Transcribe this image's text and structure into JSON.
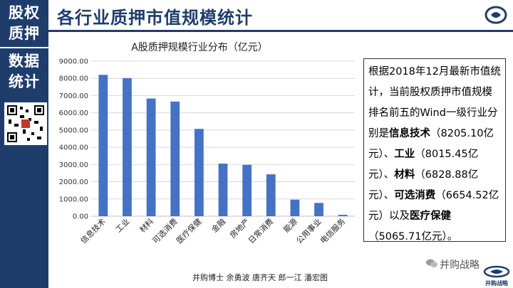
{
  "sidebar": {
    "block1": [
      "股权",
      "质押"
    ],
    "block2": [
      "数据",
      "统计"
    ]
  },
  "header": {
    "title": "各行业质押市值规模统计"
  },
  "chart_data": {
    "type": "bar",
    "title": "A股质押规模行业分布（亿元）",
    "categories": [
      "信息技术",
      "工业",
      "材料",
      "可选消费",
      "医疗保健",
      "金融",
      "房地产",
      "日常消费",
      "能源",
      "公用事业",
      "电信服务"
    ],
    "values": [
      8205.1,
      8015.45,
      6828.88,
      6654.52,
      5065.71,
      3050,
      2980,
      2430,
      960,
      770,
      80
    ],
    "ylim": [
      0,
      9000
    ],
    "yticks": [
      "0.00",
      "1000.00",
      "2000.00",
      "3000.00",
      "4000.00",
      "5000.00",
      "6000.00",
      "7000.00",
      "8000.00",
      "9000.00"
    ],
    "grid": true,
    "color": "#4472c4"
  },
  "textbox": {
    "p1": "根据2018年12月最新市值统计，当前股权质押市值规模排名前五的Wind一级行业分别是",
    "i1": "信息技术",
    "v1": "（8205.10亿元）、",
    "i2": "工业",
    "v2": "（8015.45亿元）、",
    "i3": "材料",
    "v3": "（6828.88亿元）、",
    "i4": "可选消费",
    "v4": "（6654.52亿元）以及",
    "i5": "医疗保健",
    "v5": "（5065.71亿元）。"
  },
  "footer": {
    "authors": "并购博士 余勇波 唐齐天 郎一江 潘宏图"
  },
  "brand": {
    "wechat_label": "并购战略",
    "corner_label": "并购战略",
    "accent": "#1f3d6b"
  }
}
